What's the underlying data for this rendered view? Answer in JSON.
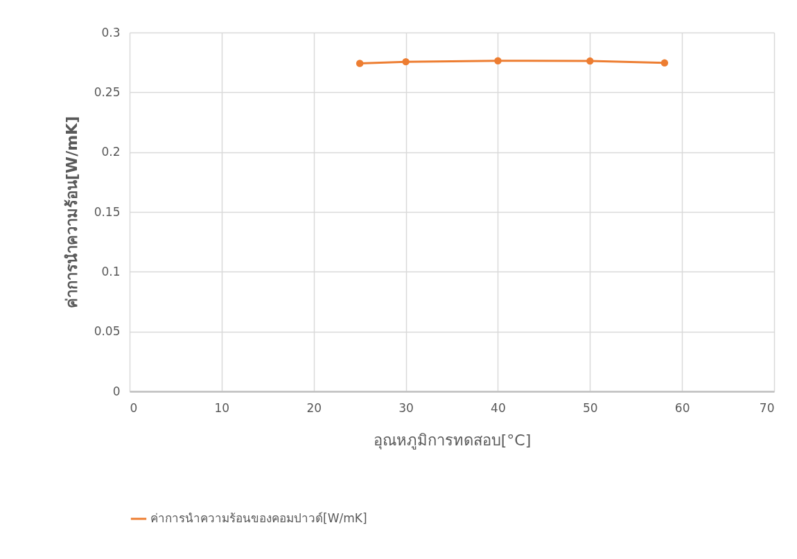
{
  "chart_data": {
    "type": "line",
    "xlabel": "อุณหภูมิการทดสอบ[°C]",
    "ylabel": "ค่าการนำความร้อน[W/mK]",
    "x": [
      25,
      30,
      40,
      50,
      58.1
    ],
    "series": [
      {
        "name": "ค่าการนำความร้อนของคอมปาวด์[W/mK]",
        "color": "#ed7d31",
        "values": [
          0.2742,
          0.2756,
          0.2764,
          0.2762,
          0.2746
        ]
      }
    ],
    "xlim": [
      0,
      70
    ],
    "xticks": [
      0,
      10,
      20,
      30,
      40,
      50,
      60,
      70
    ],
    "ylim": [
      0,
      0.3
    ],
    "yticks": [
      0,
      0.05,
      0.1,
      0.15,
      0.2,
      0.25,
      0.3
    ],
    "grid": true,
    "legend": "bottom",
    "marker": "circle",
    "line_style": "solid"
  }
}
